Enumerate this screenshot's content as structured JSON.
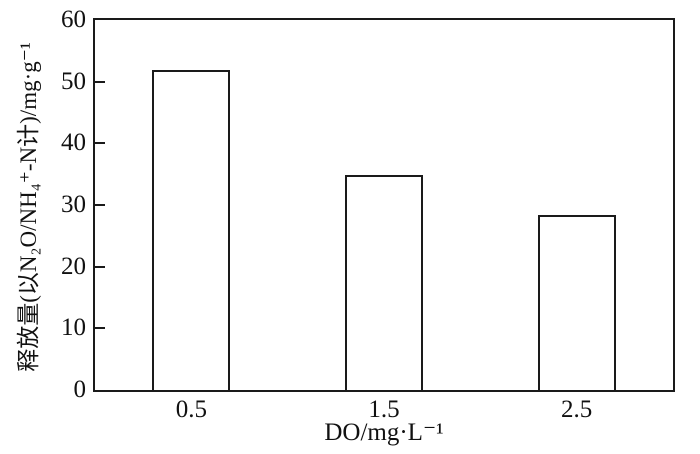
{
  "chart_data": {
    "type": "bar",
    "categories": [
      "0.5",
      "1.5",
      "2.5"
    ],
    "values": [
      51.9,
      34.9,
      28.3
    ],
    "title": "",
    "xlabel": "DO/mg·L⁻¹",
    "ylabel": "释放量(以N₂O/NH₄⁺-N计)/mg·g⁻¹",
    "ylim": [
      0,
      60
    ],
    "yticks": [
      0,
      10,
      20,
      30,
      40,
      50,
      60
    ],
    "grid": false,
    "legend": null,
    "colors": {
      "axis": "#1a1a1a",
      "bar_fill": "#ffffff",
      "bar_border": "#1a1a1a",
      "background": "#ffffff",
      "text": "#111111"
    }
  }
}
